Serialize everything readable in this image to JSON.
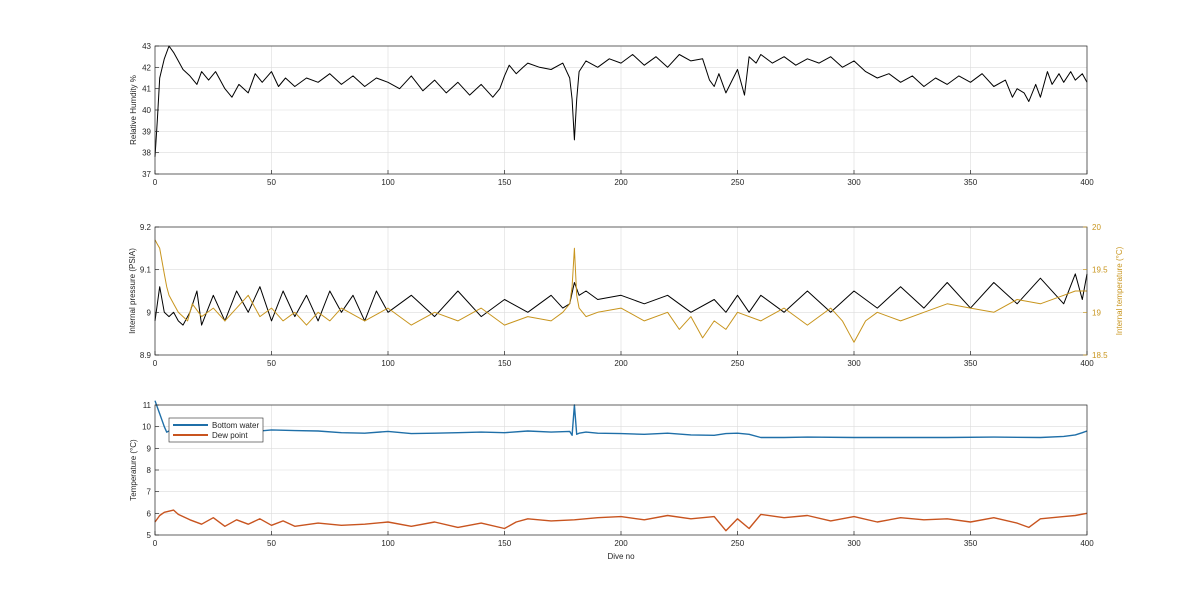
{
  "chart_data": [
    {
      "type": "line",
      "title": "",
      "xlabel": "",
      "ylabel": "Relative Humdity %",
      "xlim": [
        0,
        400
      ],
      "ylim": [
        37,
        43
      ],
      "xticks": [
        0,
        50,
        100,
        150,
        200,
        250,
        300,
        350,
        400
      ],
      "yticks": [
        37,
        38,
        39,
        40,
        41,
        42,
        43
      ],
      "grid": true,
      "series": [
        {
          "name": "",
          "color": "#000000",
          "x": [
            0,
            1,
            2,
            4,
            6,
            8,
            10,
            12,
            15,
            18,
            20,
            23,
            26,
            30,
            33,
            36,
            40,
            43,
            46,
            50,
            53,
            56,
            60,
            65,
            70,
            75,
            80,
            85,
            90,
            95,
            100,
            105,
            110,
            115,
            120,
            125,
            130,
            135,
            140,
            145,
            148,
            150,
            152,
            155,
            158,
            160,
            165,
            170,
            175,
            178,
            179,
            180,
            181,
            182,
            185,
            190,
            195,
            200,
            205,
            210,
            215,
            220,
            225,
            230,
            235,
            238,
            240,
            242,
            245,
            250,
            253,
            255,
            258,
            260,
            265,
            270,
            275,
            280,
            285,
            290,
            295,
            300,
            305,
            310,
            315,
            320,
            325,
            330,
            335,
            340,
            345,
            350,
            355,
            360,
            365,
            368,
            370,
            373,
            375,
            378,
            380,
            383,
            385,
            388,
            390,
            393,
            395,
            398,
            400
          ],
          "values": [
            37.8,
            39.5,
            41.5,
            42.4,
            43.0,
            42.7,
            42.3,
            41.9,
            41.6,
            41.2,
            41.8,
            41.4,
            41.8,
            41.0,
            40.6,
            41.2,
            40.8,
            41.7,
            41.3,
            41.8,
            41.1,
            41.5,
            41.1,
            41.5,
            41.3,
            41.7,
            41.2,
            41.6,
            41.1,
            41.5,
            41.3,
            41.0,
            41.6,
            40.9,
            41.4,
            40.8,
            41.3,
            40.7,
            41.2,
            40.6,
            41.0,
            41.6,
            42.1,
            41.7,
            42.0,
            42.2,
            42.0,
            41.9,
            42.2,
            41.5,
            40.5,
            38.6,
            40.5,
            41.8,
            42.3,
            42.0,
            42.4,
            42.2,
            42.6,
            42.1,
            42.5,
            42.0,
            42.6,
            42.3,
            42.4,
            41.4,
            41.1,
            41.7,
            40.8,
            41.9,
            40.7,
            42.5,
            42.2,
            42.6,
            42.2,
            42.5,
            42.1,
            42.4,
            42.2,
            42.5,
            42.0,
            42.3,
            41.8,
            41.5,
            41.7,
            41.3,
            41.6,
            41.1,
            41.5,
            41.2,
            41.6,
            41.3,
            41.7,
            41.1,
            41.4,
            40.6,
            41.0,
            40.8,
            40.4,
            41.2,
            40.6,
            41.8,
            41.2,
            41.7,
            41.3,
            41.8,
            41.4,
            41.7,
            41.3
          ]
        }
      ]
    },
    {
      "type": "line",
      "title": "",
      "xlabel": "",
      "ylabel": "Internal pressure (PSIA)",
      "ylabel_right": "Internal temperature (°C)",
      "xlim": [
        0,
        400
      ],
      "ylim": [
        8.9,
        9.2
      ],
      "ylim_right": [
        18.5,
        20
      ],
      "xticks": [
        0,
        50,
        100,
        150,
        200,
        250,
        300,
        350,
        400
      ],
      "yticks": [
        "8.9",
        "9",
        "9.1",
        "9.2"
      ],
      "yticks_right": [
        "18.5",
        "19",
        "19.5",
        "20"
      ],
      "grid": true,
      "series": [
        {
          "name": "",
          "axis": "left",
          "color": "#000000",
          "x": [
            0,
            2,
            4,
            6,
            8,
            10,
            12,
            15,
            18,
            20,
            25,
            30,
            35,
            40,
            45,
            50,
            55,
            60,
            65,
            70,
            75,
            80,
            85,
            90,
            95,
            100,
            110,
            120,
            130,
            140,
            150,
            160,
            170,
            175,
            178,
            180,
            182,
            185,
            190,
            200,
            210,
            220,
            230,
            240,
            245,
            250,
            255,
            260,
            270,
            280,
            290,
            300,
            310,
            320,
            330,
            340,
            350,
            360,
            370,
            380,
            390,
            395,
            398,
            400
          ],
          "values": [
            8.98,
            9.06,
            9.0,
            8.99,
            9.0,
            8.98,
            8.97,
            9.0,
            9.05,
            8.97,
            9.04,
            8.98,
            9.05,
            9.0,
            9.06,
            8.98,
            9.05,
            8.99,
            9.04,
            8.98,
            9.05,
            9.0,
            9.04,
            8.98,
            9.05,
            9.0,
            9.04,
            8.99,
            9.05,
            8.99,
            9.03,
            9.0,
            9.04,
            9.01,
            9.02,
            9.07,
            9.04,
            9.05,
            9.03,
            9.04,
            9.02,
            9.04,
            9.0,
            9.03,
            9.0,
            9.04,
            9.0,
            9.04,
            9.0,
            9.05,
            9.0,
            9.05,
            9.01,
            9.06,
            9.01,
            9.07,
            9.01,
            9.07,
            9.02,
            9.08,
            9.02,
            9.09,
            9.03,
            9.09
          ]
        },
        {
          "name": "",
          "axis": "right",
          "color": "#c8951e",
          "x": [
            0,
            1,
            2,
            3,
            4,
            5,
            6,
            8,
            10,
            12,
            14,
            16,
            20,
            25,
            30,
            35,
            40,
            45,
            50,
            55,
            60,
            65,
            70,
            75,
            80,
            90,
            100,
            110,
            120,
            130,
            140,
            150,
            160,
            170,
            175,
            178,
            179,
            180,
            181,
            182,
            185,
            190,
            200,
            210,
            220,
            225,
            230,
            235,
            240,
            245,
            250,
            260,
            270,
            280,
            290,
            295,
            298,
            300,
            305,
            310,
            320,
            330,
            340,
            350,
            360,
            370,
            380,
            390,
            395,
            400
          ],
          "values": [
            19.85,
            19.8,
            19.75,
            19.6,
            19.45,
            19.3,
            19.2,
            19.1,
            19.0,
            18.95,
            18.9,
            19.1,
            18.95,
            19.05,
            18.9,
            19.05,
            19.2,
            18.95,
            19.05,
            18.9,
            19.0,
            18.85,
            19.0,
            18.9,
            19.05,
            18.9,
            19.05,
            18.85,
            19.0,
            18.9,
            19.05,
            18.85,
            18.95,
            18.9,
            19.0,
            19.1,
            19.3,
            19.75,
            19.2,
            19.05,
            18.95,
            19.0,
            19.05,
            18.9,
            19.0,
            18.8,
            18.95,
            18.7,
            18.9,
            18.8,
            19.0,
            18.9,
            19.05,
            18.85,
            19.05,
            18.9,
            18.75,
            18.65,
            18.9,
            19.0,
            18.9,
            19.0,
            19.1,
            19.05,
            19.0,
            19.15,
            19.1,
            19.2,
            19.25,
            19.25
          ]
        }
      ]
    },
    {
      "type": "line",
      "title": "",
      "xlabel": "Dive no",
      "ylabel": "Temperature (°C)",
      "xlim": [
        0,
        400
      ],
      "ylim": [
        5,
        11
      ],
      "xticks": [
        0,
        50,
        100,
        150,
        200,
        250,
        300,
        350,
        400
      ],
      "yticks": [
        5,
        6,
        7,
        8,
        9,
        10,
        11
      ],
      "grid": true,
      "legend": "top-left",
      "series": [
        {
          "name": "Bottom water",
          "color": "#1f6fa8",
          "x": [
            0,
            1,
            2,
            3,
            4,
            5,
            6,
            8,
            10,
            15,
            20,
            30,
            40,
            50,
            60,
            70,
            80,
            90,
            100,
            110,
            120,
            130,
            140,
            150,
            160,
            170,
            178,
            179,
            180,
            181,
            182,
            185,
            190,
            200,
            210,
            220,
            230,
            240,
            245,
            250,
            255,
            260,
            270,
            280,
            300,
            320,
            340,
            360,
            380,
            390,
            395,
            398,
            400
          ],
          "values": [
            11.2,
            10.9,
            10.6,
            10.3,
            10.0,
            9.75,
            9.8,
            9.85,
            9.8,
            9.82,
            9.78,
            9.8,
            9.75,
            9.85,
            9.82,
            9.8,
            9.72,
            9.7,
            9.78,
            9.68,
            9.7,
            9.72,
            9.75,
            9.72,
            9.8,
            9.75,
            9.78,
            9.6,
            11.0,
            9.65,
            9.7,
            9.75,
            9.7,
            9.68,
            9.65,
            9.7,
            9.62,
            9.6,
            9.68,
            9.7,
            9.65,
            9.5,
            9.5,
            9.52,
            9.5,
            9.5,
            9.5,
            9.52,
            9.5,
            9.55,
            9.62,
            9.72,
            9.8
          ]
        },
        {
          "name": "Dew point",
          "color": "#c8541f",
          "x": [
            0,
            2,
            4,
            6,
            8,
            10,
            15,
            20,
            25,
            30,
            35,
            40,
            45,
            50,
            55,
            60,
            70,
            80,
            90,
            100,
            110,
            120,
            130,
            140,
            150,
            155,
            160,
            170,
            180,
            190,
            200,
            210,
            220,
            230,
            240,
            245,
            250,
            255,
            260,
            270,
            280,
            290,
            300,
            310,
            320,
            330,
            340,
            350,
            360,
            370,
            375,
            380,
            390,
            395,
            400
          ],
          "values": [
            5.6,
            5.9,
            6.05,
            6.1,
            6.15,
            5.95,
            5.7,
            5.5,
            5.8,
            5.4,
            5.7,
            5.5,
            5.75,
            5.45,
            5.65,
            5.4,
            5.55,
            5.45,
            5.5,
            5.6,
            5.4,
            5.6,
            5.35,
            5.55,
            5.3,
            5.6,
            5.75,
            5.65,
            5.7,
            5.8,
            5.85,
            5.7,
            5.9,
            5.75,
            5.85,
            5.2,
            5.75,
            5.3,
            5.95,
            5.8,
            5.9,
            5.65,
            5.85,
            5.6,
            5.8,
            5.7,
            5.75,
            5.6,
            5.8,
            5.55,
            5.35,
            5.75,
            5.85,
            5.9,
            6.0
          ]
        }
      ]
    }
  ]
}
